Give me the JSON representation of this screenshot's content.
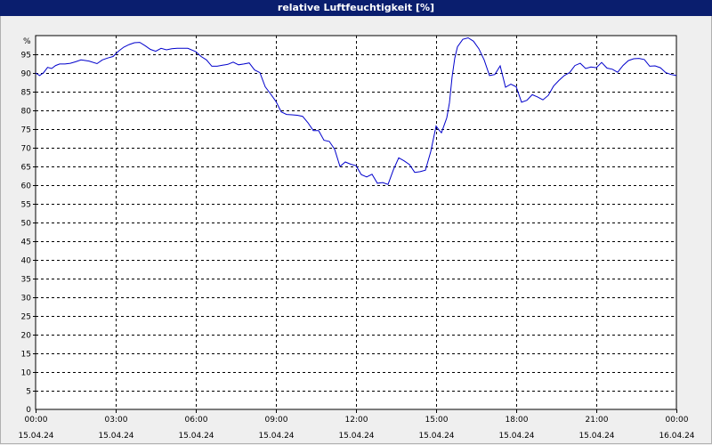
{
  "window": {
    "title": "relative Luftfeuchtigkeit [%]"
  },
  "colors": {
    "title_bg": "#0a1e6e",
    "background": "#efefef",
    "line": "#0000cc",
    "grid": "#000000"
  },
  "chart_data": {
    "type": "line",
    "title": "relative Luftfeuchtigkeit [%]",
    "ylabel": "%",
    "ylim": [
      0,
      100
    ],
    "yticks": [
      5,
      10,
      15,
      20,
      25,
      30,
      35,
      40,
      45,
      50,
      55,
      60,
      65,
      70,
      75,
      80,
      85,
      90,
      95
    ],
    "xlim_hours": [
      0,
      24
    ],
    "grid": true,
    "xticks": [
      {
        "hour": 0,
        "time": "00:00",
        "date": "15.04.24"
      },
      {
        "hour": 3,
        "time": "03:00",
        "date": "15.04.24"
      },
      {
        "hour": 6,
        "time": "06:00",
        "date": "15.04.24"
      },
      {
        "hour": 9,
        "time": "09:00",
        "date": "15.04.24"
      },
      {
        "hour": 12,
        "time": "12:00",
        "date": "15.04.24"
      },
      {
        "hour": 15,
        "time": "15:00",
        "date": "15.04.24"
      },
      {
        "hour": 18,
        "time": "18:00",
        "date": "15.04.24"
      },
      {
        "hour": 21,
        "time": "21:00",
        "date": "15.04.24"
      },
      {
        "hour": 24,
        "time": "00:00",
        "date": "16.04.24"
      }
    ],
    "series": [
      {
        "x": [
          0.0,
          0.15,
          0.3,
          0.45,
          0.6,
          0.75,
          0.9,
          1.1,
          1.3,
          1.5,
          1.7,
          2.0,
          2.3,
          2.5,
          2.7,
          2.9,
          3.1,
          3.3,
          3.5,
          3.7,
          3.9,
          4.1,
          4.3,
          4.5,
          4.7,
          4.9,
          5.1,
          5.3,
          5.5,
          5.7,
          6.0,
          6.2,
          6.4,
          6.6,
          6.8,
          7.0,
          7.2,
          7.4,
          7.6,
          7.8,
          8.0,
          8.2,
          8.4,
          8.6,
          8.8,
          9.0,
          9.2,
          9.4,
          9.6,
          9.8,
          10.0,
          10.2,
          10.4,
          10.6,
          10.8,
          11.0,
          11.2,
          11.4,
          11.6,
          11.8,
          12.0,
          12.2,
          12.4,
          12.6,
          12.8,
          13.0,
          13.2,
          13.4,
          13.6,
          13.8,
          14.0,
          14.2,
          14.4,
          14.6,
          14.8,
          15.0,
          15.1,
          15.2,
          15.3,
          15.4,
          15.5,
          15.6,
          15.7,
          15.8,
          16.0,
          16.2,
          16.4,
          16.6,
          16.8,
          17.0,
          17.2,
          17.4,
          17.6,
          17.8,
          18.0,
          18.2,
          18.4,
          18.6,
          18.8,
          19.0,
          19.2,
          19.4,
          19.6,
          19.8,
          20.0,
          20.2,
          20.4,
          20.6,
          20.8,
          21.0,
          21.2,
          21.4,
          21.6,
          21.8,
          22.0,
          22.2,
          22.4,
          22.6,
          22.8,
          23.0,
          23.2,
          23.4,
          23.6,
          23.8,
          24.0
        ],
        "y": [
          90.0,
          89.3,
          90.1,
          91.5,
          91.2,
          92.0,
          92.4,
          92.4,
          92.6,
          93.0,
          93.5,
          93.2,
          92.5,
          93.5,
          94.0,
          94.4,
          95.8,
          96.9,
          97.6,
          98.1,
          98.2,
          97.3,
          96.3,
          95.8,
          96.6,
          96.2,
          96.5,
          96.6,
          96.6,
          96.6,
          95.7,
          94.4,
          93.5,
          91.8,
          91.8,
          92.1,
          92.3,
          92.9,
          92.2,
          92.4,
          92.7,
          90.8,
          90.1,
          86.3,
          84.4,
          82.4,
          79.6,
          78.9,
          78.8,
          78.7,
          78.4,
          76.7,
          74.6,
          74.6,
          72.0,
          71.7,
          69.6,
          65.0,
          66.2,
          65.6,
          65.2,
          62.8,
          62.2,
          62.9,
          60.5,
          60.7,
          60.2,
          64.1,
          67.3,
          66.5,
          65.5,
          63.4,
          63.6,
          64.0,
          69.0,
          75.8,
          74.8,
          74.0,
          76.0,
          78.0,
          82.0,
          89.0,
          94.0,
          97.0,
          99.0,
          99.4,
          98.5,
          96.5,
          93.5,
          89.3,
          89.6,
          91.9,
          86.2,
          87.0,
          86.3,
          82.2,
          82.7,
          84.2,
          83.6,
          82.8,
          84.0,
          86.5,
          88.0,
          89.3,
          90.1,
          92.0,
          92.6,
          91.2,
          91.6,
          91.4,
          92.8,
          91.3,
          91.0,
          90.2,
          92.0,
          93.3,
          93.8,
          93.9,
          93.6,
          91.8,
          91.9,
          91.4,
          90.1,
          89.6,
          89.3
        ]
      }
    ]
  }
}
